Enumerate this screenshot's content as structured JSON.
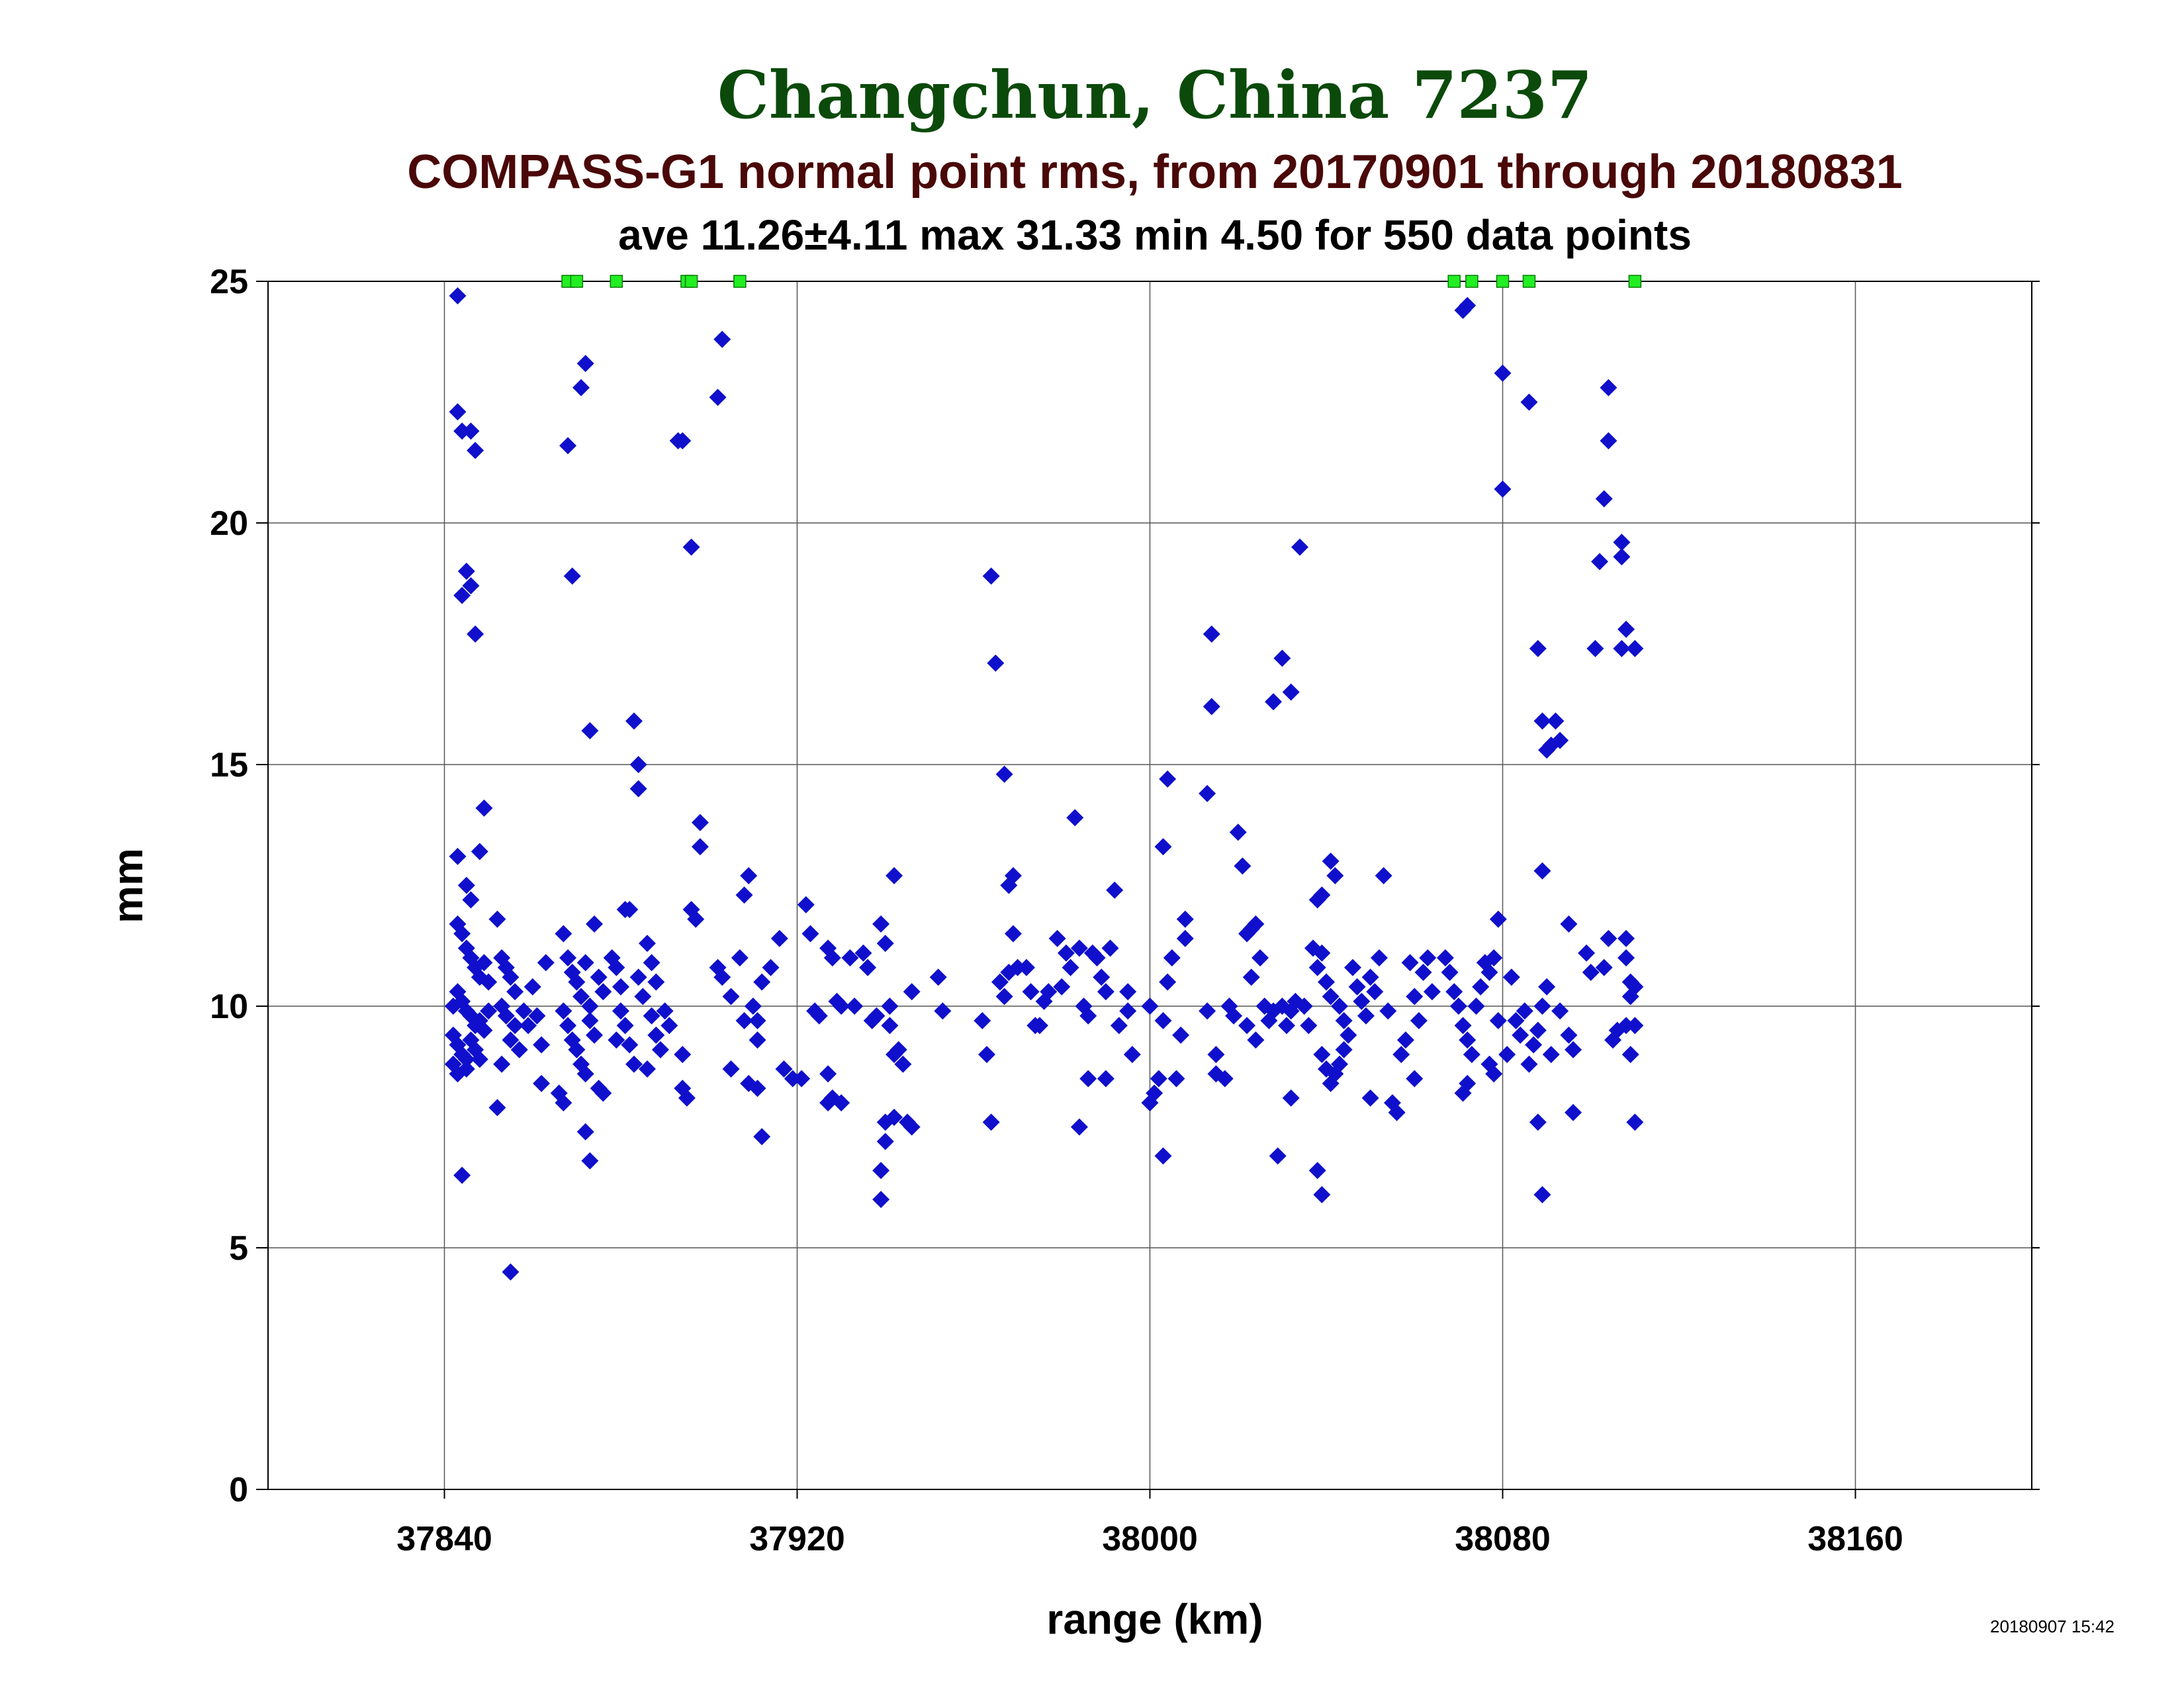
{
  "chart_data": {
    "type": "scatter",
    "title": "Changchun, China 7237",
    "subtitle": "COMPASS-G1 normal point rms, from 20170901 through 20180831",
    "stats_line": "ave 11.26±4.11 max 31.33 min 4.50 for 550 data points",
    "xlabel": "range (km)",
    "ylabel": "mm",
    "timestamp": "20180907 15:42",
    "xlim": [
      37800,
      38200
    ],
    "ylim": [
      0,
      25
    ],
    "x_ticks": [
      37840,
      37920,
      38000,
      38080,
      38160
    ],
    "x_tick_labels": [
      "37840",
      "37920",
      "38000",
      "38080",
      "38160"
    ],
    "y_ticks": [
      0,
      5,
      10,
      15,
      20,
      25
    ],
    "y_tick_labels": [
      "0",
      "5",
      "10",
      "15",
      "20",
      "25"
    ],
    "grid": true,
    "colors": {
      "title": "#0b4a0b",
      "subtitle": "#4a0808",
      "points": "#1010cc",
      "clipped": "#22ee22",
      "grid": "#555555"
    },
    "clipped_points_x": [
      37868,
      37870,
      37879,
      37895,
      37896,
      37907,
      38069,
      38073,
      38080,
      38086,
      38110
    ],
    "points": [
      [
        37843,
        24.7
      ],
      [
        37843,
        22.3
      ],
      [
        37844,
        21.9
      ],
      [
        37846,
        21.9
      ],
      [
        37847,
        21.5
      ],
      [
        37845,
        19.0
      ],
      [
        37844,
        18.5
      ],
      [
        37846,
        18.7
      ],
      [
        37847,
        17.7
      ],
      [
        37849,
        14.1
      ],
      [
        37843,
        13.1
      ],
      [
        37848,
        13.2
      ],
      [
        37845,
        12.5
      ],
      [
        37846,
        12.2
      ],
      [
        37843,
        11.7
      ],
      [
        37844,
        11.5
      ],
      [
        37845,
        11.2
      ],
      [
        37846,
        11.0
      ],
      [
        37847,
        10.8
      ],
      [
        37848,
        10.6
      ],
      [
        37849,
        10.9
      ],
      [
        37850,
        10.5
      ],
      [
        37842,
        10.0
      ],
      [
        37843,
        10.3
      ],
      [
        37844,
        10.1
      ],
      [
        37845,
        9.9
      ],
      [
        37846,
        9.8
      ],
      [
        37847,
        9.6
      ],
      [
        37848,
        9.7
      ],
      [
        37849,
        9.5
      ],
      [
        37850,
        9.9
      ],
      [
        37842,
        9.4
      ],
      [
        37843,
        9.2
      ],
      [
        37844,
        9.0
      ],
      [
        37845,
        8.9
      ],
      [
        37846,
        9.3
      ],
      [
        37847,
        9.1
      ],
      [
        37842,
        8.8
      ],
      [
        37843,
        8.6
      ],
      [
        37845,
        8.7
      ],
      [
        37848,
        8.9
      ],
      [
        37844,
        6.5
      ],
      [
        37852,
        7.9
      ],
      [
        37855,
        4.5
      ],
      [
        37852,
        11.8
      ],
      [
        37853,
        11.0
      ],
      [
        37854,
        10.8
      ],
      [
        37855,
        10.6
      ],
      [
        37856,
        10.3
      ],
      [
        37853,
        10.0
      ],
      [
        37854,
        9.8
      ],
      [
        37856,
        9.6
      ],
      [
        37855,
        9.3
      ],
      [
        37857,
        9.1
      ],
      [
        37853,
        8.8
      ],
      [
        37858,
        9.9
      ],
      [
        37859,
        9.6
      ],
      [
        37860,
        10.4
      ],
      [
        37861,
        9.8
      ],
      [
        37862,
        9.2
      ],
      [
        37863,
        10.9
      ],
      [
        37862,
        8.4
      ],
      [
        37868,
        21.6
      ],
      [
        37869,
        18.9
      ],
      [
        37871,
        22.8
      ],
      [
        37872,
        23.3
      ],
      [
        37873,
        15.7
      ],
      [
        37867,
        11.5
      ],
      [
        37868,
        11.0
      ],
      [
        37869,
        10.7
      ],
      [
        37870,
        10.5
      ],
      [
        37871,
        10.2
      ],
      [
        37872,
        10.9
      ],
      [
        37873,
        10.0
      ],
      [
        37874,
        11.7
      ],
      [
        37875,
        10.6
      ],
      [
        37876,
        10.3
      ],
      [
        37867,
        9.9
      ],
      [
        37868,
        9.6
      ],
      [
        37869,
        9.3
      ],
      [
        37870,
        9.1
      ],
      [
        37871,
        8.8
      ],
      [
        37872,
        8.6
      ],
      [
        37873,
        9.7
      ],
      [
        37874,
        9.4
      ],
      [
        37875,
        8.3
      ],
      [
        37866,
        8.2
      ],
      [
        37867,
        8.0
      ],
      [
        37872,
        7.4
      ],
      [
        37873,
        6.8
      ],
      [
        37876,
        8.2
      ],
      [
        37878,
        11.0
      ],
      [
        37879,
        10.8
      ],
      [
        37880,
        10.4
      ],
      [
        37881,
        12.0
      ],
      [
        37882,
        12.0
      ],
      [
        37880,
        9.9
      ],
      [
        37881,
        9.6
      ],
      [
        37879,
        9.3
      ],
      [
        37882,
        9.2
      ],
      [
        37883,
        8.8
      ],
      [
        37884,
        10.6
      ],
      [
        37885,
        10.2
      ],
      [
        37883,
        15.9
      ],
      [
        37884,
        15.0
      ],
      [
        37884,
        14.5
      ],
      [
        37886,
        11.3
      ],
      [
        37887,
        10.9
      ],
      [
        37888,
        10.5
      ],
      [
        37887,
        9.8
      ],
      [
        37888,
        9.4
      ],
      [
        37889,
        9.1
      ],
      [
        37890,
        9.9
      ],
      [
        37891,
        9.6
      ],
      [
        37886,
        8.7
      ],
      [
        37893,
        21.7
      ],
      [
        37894,
        21.7
      ],
      [
        37896,
        19.5
      ],
      [
        37898,
        13.8
      ],
      [
        37898,
        13.3
      ],
      [
        37896,
        12.0
      ],
      [
        37897,
        11.8
      ],
      [
        37894,
        9.0
      ],
      [
        37894,
        8.3
      ],
      [
        37895,
        8.1
      ],
      [
        37903,
        23.8
      ],
      [
        37902,
        22.6
      ],
      [
        37902,
        10.8
      ],
      [
        37903,
        10.6
      ],
      [
        37905,
        10.2
      ],
      [
        37905,
        8.7
      ],
      [
        37907,
        11.0
      ],
      [
        37908,
        9.7
      ],
      [
        37909,
        12.7
      ],
      [
        37908,
        12.3
      ],
      [
        37910,
        10.0
      ],
      [
        37911,
        9.7
      ],
      [
        37911,
        9.3
      ],
      [
        37909,
        8.4
      ],
      [
        37911,
        8.3
      ],
      [
        37912,
        7.3
      ],
      [
        37912,
        10.5
      ],
      [
        37914,
        10.8
      ],
      [
        37916,
        11.4
      ],
      [
        37917,
        8.7
      ],
      [
        37919,
        8.5
      ],
      [
        37921,
        8.5
      ],
      [
        37922,
        12.1
      ],
      [
        37923,
        11.5
      ],
      [
        37924,
        9.9
      ],
      [
        37925,
        9.8
      ],
      [
        37927,
        11.2
      ],
      [
        37928,
        11.0
      ],
      [
        37929,
        10.1
      ],
      [
        37930,
        10.0
      ],
      [
        37927,
        8.6
      ],
      [
        37927,
        8.0
      ],
      [
        37928,
        8.1
      ],
      [
        37930,
        8.0
      ],
      [
        37932,
        11.0
      ],
      [
        37933,
        10.0
      ],
      [
        37935,
        11.1
      ],
      [
        37936,
        10.8
      ],
      [
        37937,
        9.7
      ],
      [
        37938,
        9.8
      ],
      [
        37939,
        11.7
      ],
      [
        37940,
        11.3
      ],
      [
        37941,
        10.0
      ],
      [
        37941,
        9.6
      ],
      [
        37942,
        12.7
      ],
      [
        37942,
        9.0
      ],
      [
        37943,
        9.1
      ],
      [
        37944,
        8.8
      ],
      [
        37945,
        7.6
      ],
      [
        37946,
        7.5
      ],
      [
        37939,
        6.6
      ],
      [
        37939,
        6.0
      ],
      [
        37940,
        7.2
      ],
      [
        37940,
        7.6
      ],
      [
        37942,
        7.7
      ],
      [
        37946,
        10.3
      ],
      [
        37952,
        10.6
      ],
      [
        37953,
        9.9
      ],
      [
        37962,
        9.7
      ],
      [
        37963,
        9.0
      ],
      [
        37964,
        7.6
      ],
      [
        37964,
        18.9
      ],
      [
        37965,
        17.1
      ],
      [
        37967,
        14.8
      ],
      [
        37968,
        12.5
      ],
      [
        37969,
        12.7
      ],
      [
        37969,
        11.5
      ],
      [
        37970,
        10.8
      ],
      [
        37966,
        10.5
      ],
      [
        37967,
        10.2
      ],
      [
        37968,
        10.7
      ],
      [
        37972,
        10.8
      ],
      [
        37973,
        10.3
      ],
      [
        37974,
        9.6
      ],
      [
        37975,
        9.6
      ],
      [
        37976,
        10.1
      ],
      [
        37977,
        10.3
      ],
      [
        37979,
        11.4
      ],
      [
        37980,
        10.4
      ],
      [
        37981,
        11.1
      ],
      [
        37982,
        10.8
      ],
      [
        37983,
        13.9
      ],
      [
        37984,
        11.2
      ],
      [
        37985,
        10.0
      ],
      [
        37986,
        9.8
      ],
      [
        37987,
        11.1
      ],
      [
        37988,
        11.0
      ],
      [
        37989,
        10.6
      ],
      [
        37990,
        10.3
      ],
      [
        37986,
        8.5
      ],
      [
        37990,
        8.5
      ],
      [
        37984,
        7.5
      ],
      [
        37991,
        11.2
      ],
      [
        37992,
        12.4
      ],
      [
        37993,
        9.6
      ],
      [
        37995,
        10.3
      ],
      [
        37995,
        9.9
      ],
      [
        37996,
        9.0
      ],
      [
        38000,
        10.0
      ],
      [
        38000,
        8.0
      ],
      [
        38001,
        8.2
      ],
      [
        38002,
        8.5
      ],
      [
        38003,
        9.7
      ],
      [
        38004,
        10.5
      ],
      [
        38005,
        11.0
      ],
      [
        38003,
        13.3
      ],
      [
        38004,
        14.7
      ],
      [
        38006,
        8.5
      ],
      [
        38008,
        11.8
      ],
      [
        38008,
        11.4
      ],
      [
        38007,
        9.4
      ],
      [
        38003,
        6.9
      ],
      [
        38013,
        14.4
      ],
      [
        38014,
        17.7
      ],
      [
        38014,
        16.2
      ],
      [
        38013,
        9.9
      ],
      [
        38015,
        9.0
      ],
      [
        38015,
        8.6
      ],
      [
        38017,
        8.5
      ],
      [
        38018,
        10.0
      ],
      [
        38019,
        9.8
      ],
      [
        38020,
        13.6
      ],
      [
        38021,
        12.9
      ],
      [
        38022,
        11.5
      ],
      [
        38023,
        11.6
      ],
      [
        38024,
        11.7
      ],
      [
        38023,
        10.6
      ],
      [
        38022,
        9.6
      ],
      [
        38024,
        9.3
      ],
      [
        38025,
        11.0
      ],
      [
        38026,
        10.0
      ],
      [
        38027,
        9.7
      ],
      [
        38028,
        9.9
      ],
      [
        38029,
        6.9
      ],
      [
        38030,
        10.0
      ],
      [
        38031,
        9.6
      ],
      [
        38032,
        9.9
      ],
      [
        38033,
        10.1
      ],
      [
        38028,
        16.3
      ],
      [
        38030,
        17.2
      ],
      [
        38032,
        16.5
      ],
      [
        38034,
        19.5
      ],
      [
        38032,
        8.1
      ],
      [
        38035,
        10.0
      ],
      [
        38036,
        9.6
      ],
      [
        38037,
        11.2
      ],
      [
        38038,
        10.8
      ],
      [
        38039,
        11.1
      ],
      [
        38040,
        10.5
      ],
      [
        38041,
        10.2
      ],
      [
        38038,
        12.2
      ],
      [
        38039,
        12.3
      ],
      [
        38041,
        13.0
      ],
      [
        38042,
        12.7
      ],
      [
        38043,
        10.0
      ],
      [
        38044,
        9.7
      ],
      [
        38045,
        9.4
      ],
      [
        38039,
        9.0
      ],
      [
        38040,
        8.7
      ],
      [
        38041,
        8.4
      ],
      [
        38042,
        8.6
      ],
      [
        38043,
        8.8
      ],
      [
        38044,
        9.1
      ],
      [
        38038,
        6.6
      ],
      [
        38039,
        6.1
      ],
      [
        38046,
        10.8
      ],
      [
        38047,
        10.4
      ],
      [
        38048,
        10.1
      ],
      [
        38049,
        9.8
      ],
      [
        38050,
        10.6
      ],
      [
        38051,
        10.3
      ],
      [
        38052,
        11.0
      ],
      [
        38053,
        12.7
      ],
      [
        38050,
        8.1
      ],
      [
        38054,
        9.9
      ],
      [
        38055,
        8.0
      ],
      [
        38056,
        7.8
      ],
      [
        38057,
        9.0
      ],
      [
        38058,
        9.3
      ],
      [
        38059,
        10.9
      ],
      [
        38060,
        10.2
      ],
      [
        38061,
        9.7
      ],
      [
        38062,
        10.7
      ],
      [
        38063,
        11.0
      ],
      [
        38064,
        10.3
      ],
      [
        38060,
        8.5
      ],
      [
        38067,
        11.0
      ],
      [
        38068,
        10.7
      ],
      [
        38069,
        10.3
      ],
      [
        38070,
        10.0
      ],
      [
        38071,
        9.6
      ],
      [
        38072,
        9.3
      ],
      [
        38073,
        9.0
      ],
      [
        38072,
        8.4
      ],
      [
        38071,
        8.2
      ],
      [
        38074,
        10.0
      ],
      [
        38075,
        10.4
      ],
      [
        38076,
        10.9
      ],
      [
        38077,
        10.7
      ],
      [
        38078,
        11.0
      ],
      [
        38079,
        11.8
      ],
      [
        38077,
        8.8
      ],
      [
        38078,
        8.6
      ],
      [
        38079,
        9.7
      ],
      [
        38081,
        9.0
      ],
      [
        38082,
        10.6
      ],
      [
        38083,
        9.7
      ],
      [
        38084,
        9.4
      ],
      [
        38085,
        9.9
      ],
      [
        38086,
        8.8
      ],
      [
        38087,
        9.2
      ],
      [
        38088,
        9.5
      ],
      [
        38089,
        10.0
      ],
      [
        38090,
        10.4
      ],
      [
        38088,
        7.6
      ],
      [
        38089,
        6.1
      ],
      [
        38071,
        24.4
      ],
      [
        38072,
        24.5
      ],
      [
        38080,
        23.1
      ],
      [
        38080,
        20.7
      ],
      [
        38086,
        22.5
      ],
      [
        38088,
        17.4
      ],
      [
        38089,
        15.9
      ],
      [
        38089,
        12.8
      ],
      [
        38090,
        15.3
      ],
      [
        38091,
        15.4
      ],
      [
        38092,
        15.9
      ],
      [
        38093,
        15.5
      ],
      [
        38091,
        9.0
      ],
      [
        38093,
        9.9
      ],
      [
        38095,
        11.7
      ],
      [
        38095,
        9.4
      ],
      [
        38096,
        9.1
      ],
      [
        38096,
        7.8
      ],
      [
        38099,
        11.1
      ],
      [
        38100,
        10.7
      ],
      [
        38101,
        17.4
      ],
      [
        38102,
        19.2
      ],
      [
        38103,
        20.5
      ],
      [
        38104,
        21.7
      ],
      [
        38104,
        22.8
      ],
      [
        38104,
        11.4
      ],
      [
        38103,
        10.8
      ],
      [
        38105,
        9.3
      ],
      [
        38106,
        9.5
      ],
      [
        38107,
        19.3
      ],
      [
        38107,
        19.6
      ],
      [
        38108,
        17.8
      ],
      [
        38107,
        17.4
      ],
      [
        38110,
        17.4
      ],
      [
        38108,
        11.4
      ],
      [
        38108,
        11.0
      ],
      [
        38109,
        10.5
      ],
      [
        38109,
        10.2
      ],
      [
        38110,
        10.4
      ],
      [
        38108,
        9.6
      ],
      [
        38110,
        9.6
      ],
      [
        38109,
        9.0
      ],
      [
        38110,
        7.6
      ]
    ]
  }
}
